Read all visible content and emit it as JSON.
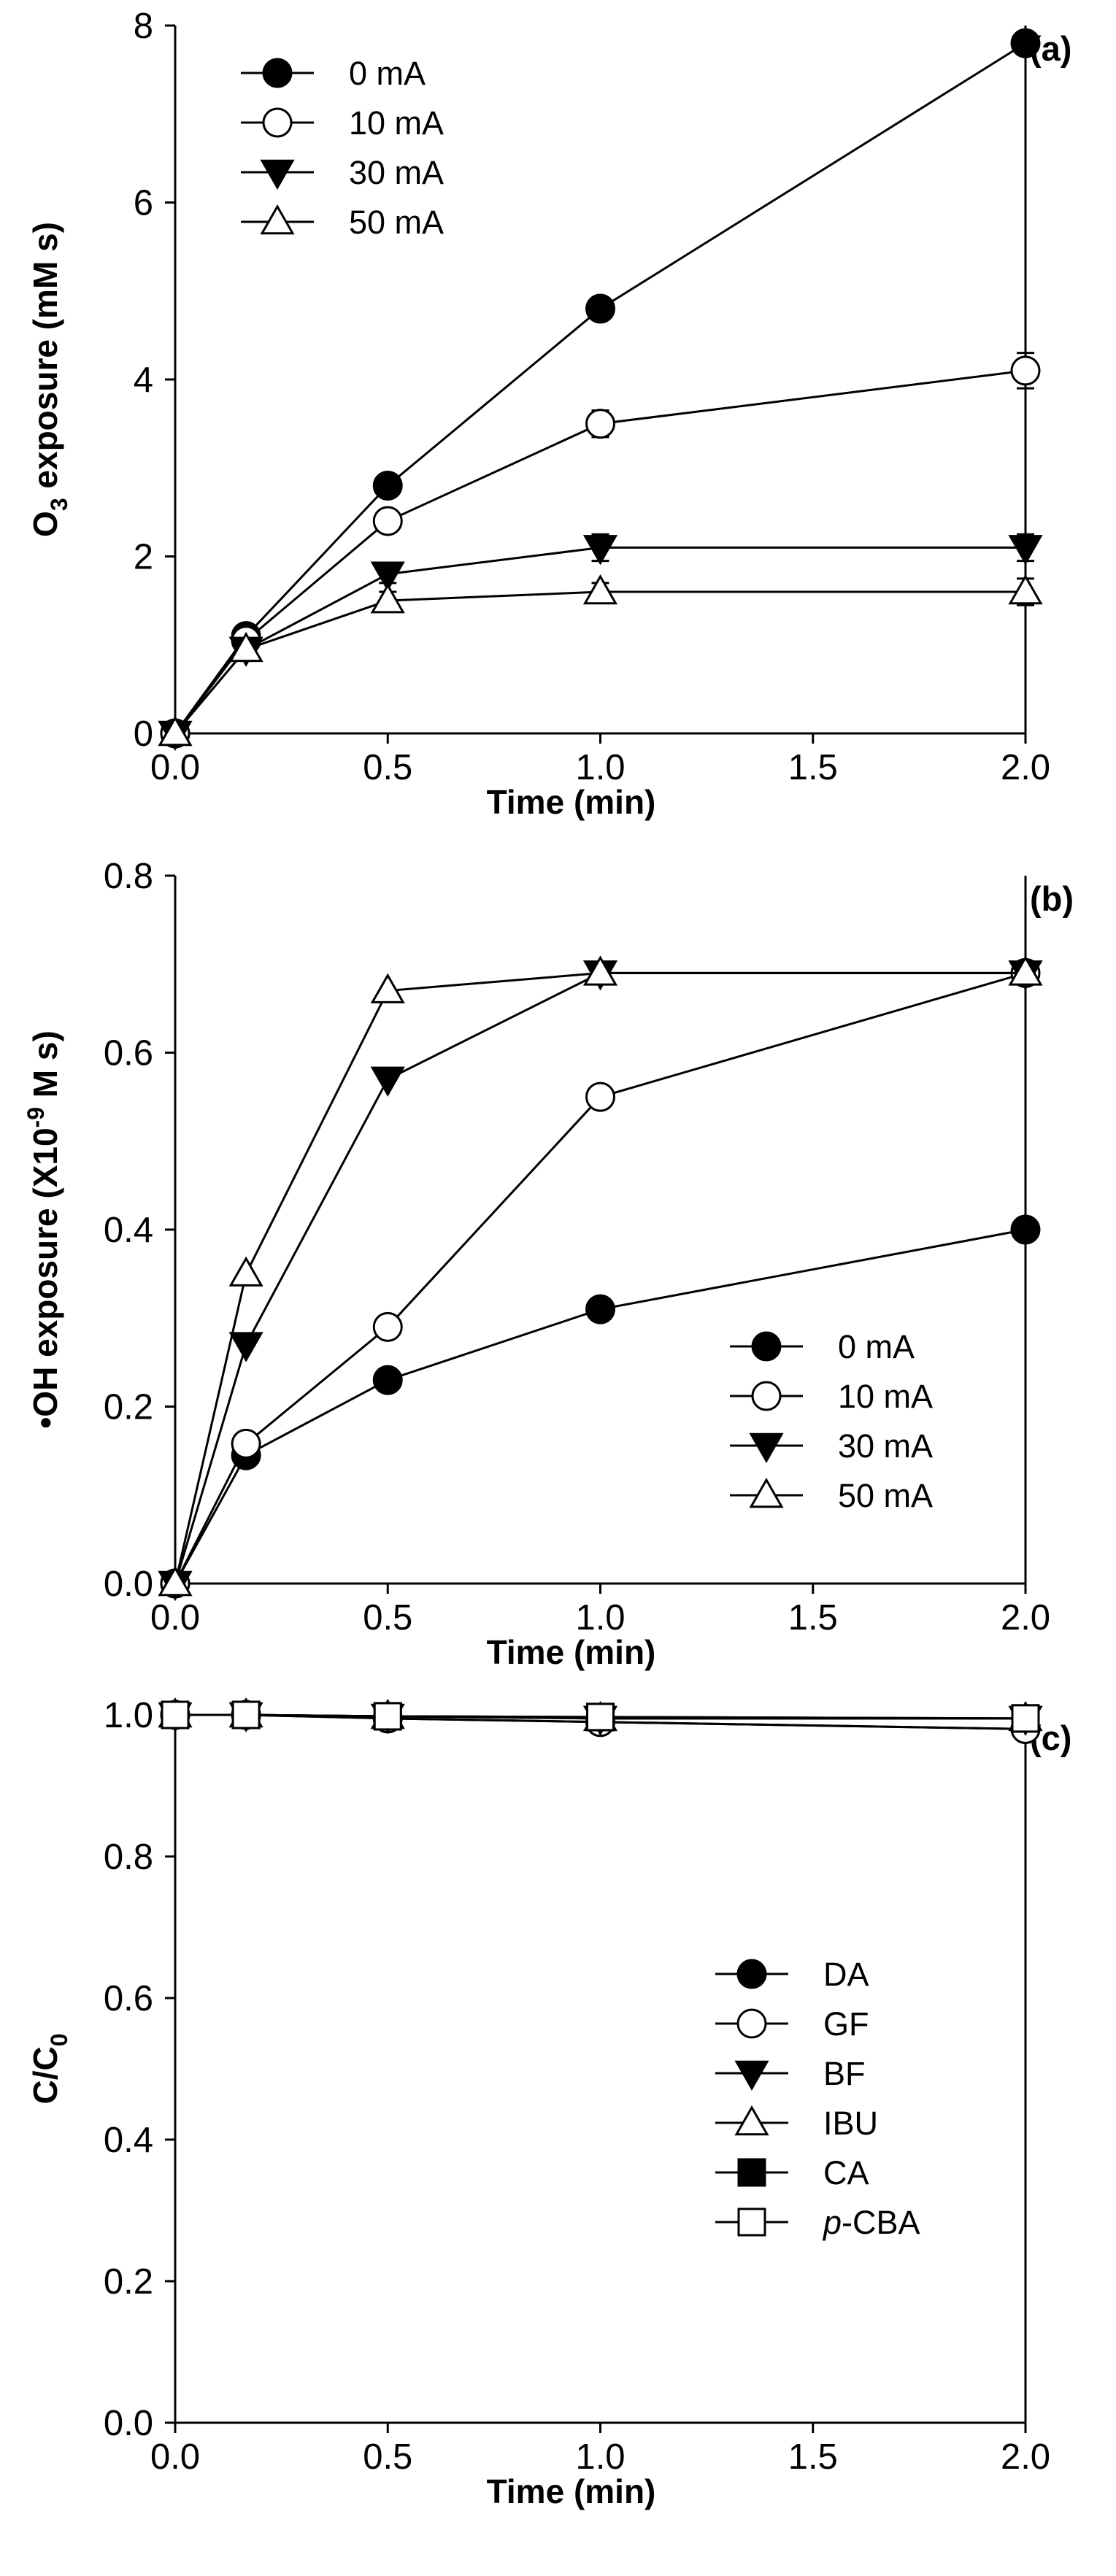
{
  "chart_data": [
    {
      "type": "line",
      "panel_label": "(a)",
      "x": [
        0,
        0.1667,
        0.5,
        1.0,
        2.0
      ],
      "xlim": [
        0,
        2
      ],
      "xticks": [
        "0.0",
        "0.5",
        "1.0",
        "1.5",
        "2.0"
      ],
      "xlabel": "Time (min)",
      "ylim": [
        0,
        8
      ],
      "yticks": [
        "0",
        "2",
        "4",
        "6",
        "8"
      ],
      "ylabel": {
        "pre": "O",
        "sub": "3",
        "post": " exposure (mM s)"
      },
      "legend_position": "top-left",
      "series": [
        {
          "name": "0 mA",
          "marker": "circle",
          "fill": "black",
          "values": [
            0,
            1.1,
            2.8,
            4.8,
            7.8
          ],
          "errors": [
            0,
            0.1,
            0.1,
            0.1,
            0.1
          ]
        },
        {
          "name": "10 mA",
          "marker": "circle",
          "fill": "white",
          "values": [
            0,
            1.05,
            2.4,
            3.5,
            4.1
          ],
          "errors": [
            0,
            0.1,
            0.1,
            0.15,
            0.2
          ]
        },
        {
          "name": "30 mA",
          "marker": "triangle-down",
          "fill": "black",
          "values": [
            0,
            0.95,
            1.8,
            2.1,
            2.1
          ],
          "errors": [
            0,
            0.1,
            0.1,
            0.15,
            0.15
          ]
        },
        {
          "name": "50 mA",
          "marker": "triangle-up",
          "fill": "white",
          "values": [
            0,
            0.95,
            1.5,
            1.6,
            1.6
          ],
          "errors": [
            0,
            0.1,
            0.1,
            0.1,
            0.15
          ]
        }
      ]
    },
    {
      "type": "line",
      "panel_label": "(b)",
      "x": [
        0,
        0.1667,
        0.5,
        1.0,
        2.0
      ],
      "xlim": [
        0,
        2
      ],
      "xticks": [
        "0.0",
        "0.5",
        "1.0",
        "1.5",
        "2.0"
      ],
      "xlabel": "Time (min)",
      "ylim": [
        0,
        0.8
      ],
      "yticks": [
        "0.0",
        "0.2",
        "0.4",
        "0.6",
        "0.8"
      ],
      "ylabel": {
        "pre": "•OH exposure (X10",
        "sup": "-9",
        "post": " M s)"
      },
      "legend_position": "bottom-right",
      "series": [
        {
          "name": "0 mA",
          "marker": "circle",
          "fill": "black",
          "values": [
            0,
            0.145,
            0.23,
            0.31,
            0.4
          ]
        },
        {
          "name": "10 mA",
          "marker": "circle",
          "fill": "white",
          "values": [
            0,
            0.158,
            0.29,
            0.55,
            0.69
          ]
        },
        {
          "name": "30 mA",
          "marker": "triangle-down",
          "fill": "black",
          "values": [
            0,
            0.27,
            0.57,
            0.69,
            0.69
          ]
        },
        {
          "name": "50 mA",
          "marker": "triangle-up",
          "fill": "white",
          "values": [
            0,
            0.35,
            0.67,
            0.69,
            0.69
          ]
        }
      ]
    },
    {
      "type": "line",
      "panel_label": "(c)",
      "x": [
        0,
        0.1667,
        0.5,
        1.0,
        2.0
      ],
      "xlim": [
        0,
        2
      ],
      "xticks": [
        "0.0",
        "0.5",
        "1.0",
        "1.5",
        "2.0"
      ],
      "xlabel": "Time (min)",
      "ylim": [
        0,
        1.0
      ],
      "yticks": [
        "0.0",
        "0.2",
        "0.4",
        "0.6",
        "0.8",
        "1.0"
      ],
      "ylabel": {
        "pre": "C/C",
        "sub": "0",
        "post": ""
      },
      "legend_position": "center-right",
      "series": [
        {
          "name": "DA",
          "marker": "circle",
          "fill": "black",
          "values": [
            1.0,
            1.0,
            0.995,
            0.99,
            0.98
          ]
        },
        {
          "name": "GF",
          "marker": "circle",
          "fill": "white",
          "values": [
            1.0,
            1.0,
            0.995,
            0.99,
            0.98
          ]
        },
        {
          "name": "BF",
          "marker": "triangle-down",
          "fill": "black",
          "values": [
            1.0,
            1.0,
            0.998,
            0.995,
            0.995
          ]
        },
        {
          "name": "IBU",
          "marker": "triangle-up",
          "fill": "white",
          "values": [
            1.0,
            1.0,
            0.998,
            0.995,
            0.995
          ]
        },
        {
          "name": "CA",
          "marker": "square",
          "fill": "black",
          "values": [
            1.0,
            1.0,
            0.998,
            0.997,
            0.995
          ]
        },
        {
          "name": "-CBA",
          "name_italic_prefix": "p",
          "marker": "square",
          "fill": "white",
          "values": [
            1.0,
            1.0,
            0.998,
            0.997,
            0.995
          ]
        }
      ]
    }
  ]
}
